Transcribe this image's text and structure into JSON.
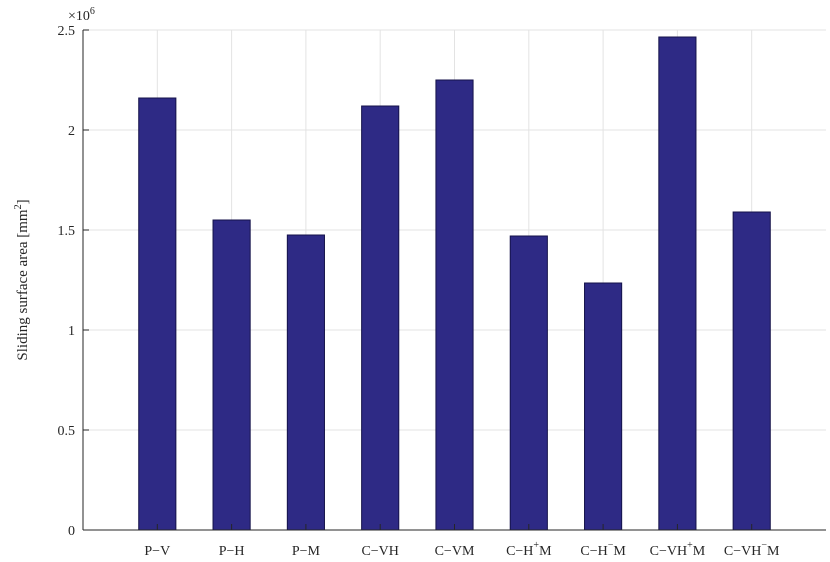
{
  "chart_data": {
    "type": "bar",
    "title": "",
    "xlabel": "",
    "ylabel": "Sliding surface area [mm",
    "ylabel_sup": "2",
    "ylabel_end": "]",
    "y_exponent_base": "×10",
    "y_exponent_power": "6",
    "categories": [
      {
        "base": "P−V",
        "sup": "",
        "end": ""
      },
      {
        "base": "P−H",
        "sup": "",
        "end": ""
      },
      {
        "base": "P−M",
        "sup": "",
        "end": ""
      },
      {
        "base": "C−VH",
        "sup": "",
        "end": ""
      },
      {
        "base": "C−VM",
        "sup": "",
        "end": ""
      },
      {
        "base": "C−H",
        "sup": "+",
        "end": "M"
      },
      {
        "base": "C−H",
        "sup": "−",
        "end": "M"
      },
      {
        "base": "C−VH",
        "sup": "+",
        "end": "M"
      },
      {
        "base": "C−VH",
        "sup": "−",
        "end": "M"
      }
    ],
    "values": [
      2.16,
      1.55,
      1.475,
      2.12,
      2.25,
      1.47,
      1.235,
      2.465,
      1.59
    ],
    "ylim": [
      0,
      2.5
    ],
    "yticks": [
      "0",
      "0.5",
      "1",
      "1.5",
      "2",
      "2.5"
    ],
    "grid": true,
    "bar_color": "#2e2a85"
  }
}
